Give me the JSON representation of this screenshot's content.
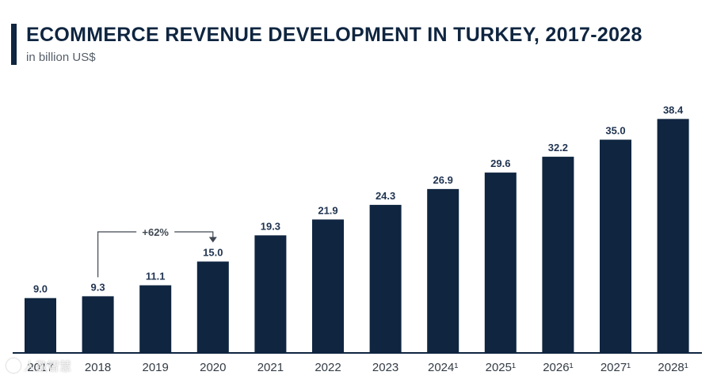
{
  "header": {
    "title": "ECOMMERCE REVENUE DEVELOPMENT IN TURKEY, 2017-2028",
    "subtitle": "in billion US$"
  },
  "watermark": {
    "text": "人数智慧"
  },
  "colors": {
    "bar": "#0f2540",
    "label": "#1f3350",
    "axis": "#0f2540",
    "tick": "#333b44",
    "annotation": "#3f4852"
  },
  "chart_data": {
    "type": "bar",
    "categories": [
      "2017",
      "2018",
      "2019",
      "2020",
      "2021",
      "2022",
      "2023",
      "2024¹",
      "2025¹",
      "2026¹",
      "2027¹",
      "2028¹"
    ],
    "values": [
      9.0,
      9.3,
      11.1,
      15.0,
      19.3,
      21.9,
      24.3,
      26.9,
      29.6,
      32.2,
      35.0,
      38.4
    ],
    "value_labels": [
      "9.0",
      "9.3",
      "11.1",
      "15.0",
      "19.3",
      "21.9",
      "24.3",
      "26.9",
      "29.6",
      "32.2",
      "35.0",
      "38.4"
    ],
    "title": "ECOMMERCE REVENUE DEVELOPMENT IN TURKEY, 2017-2028",
    "ylabel": "in billion US$",
    "ylim": [
      0,
      40
    ],
    "grid": false,
    "annotations": [
      {
        "text": "+62%",
        "from_category": "2018",
        "to_category": "2020"
      }
    ]
  }
}
